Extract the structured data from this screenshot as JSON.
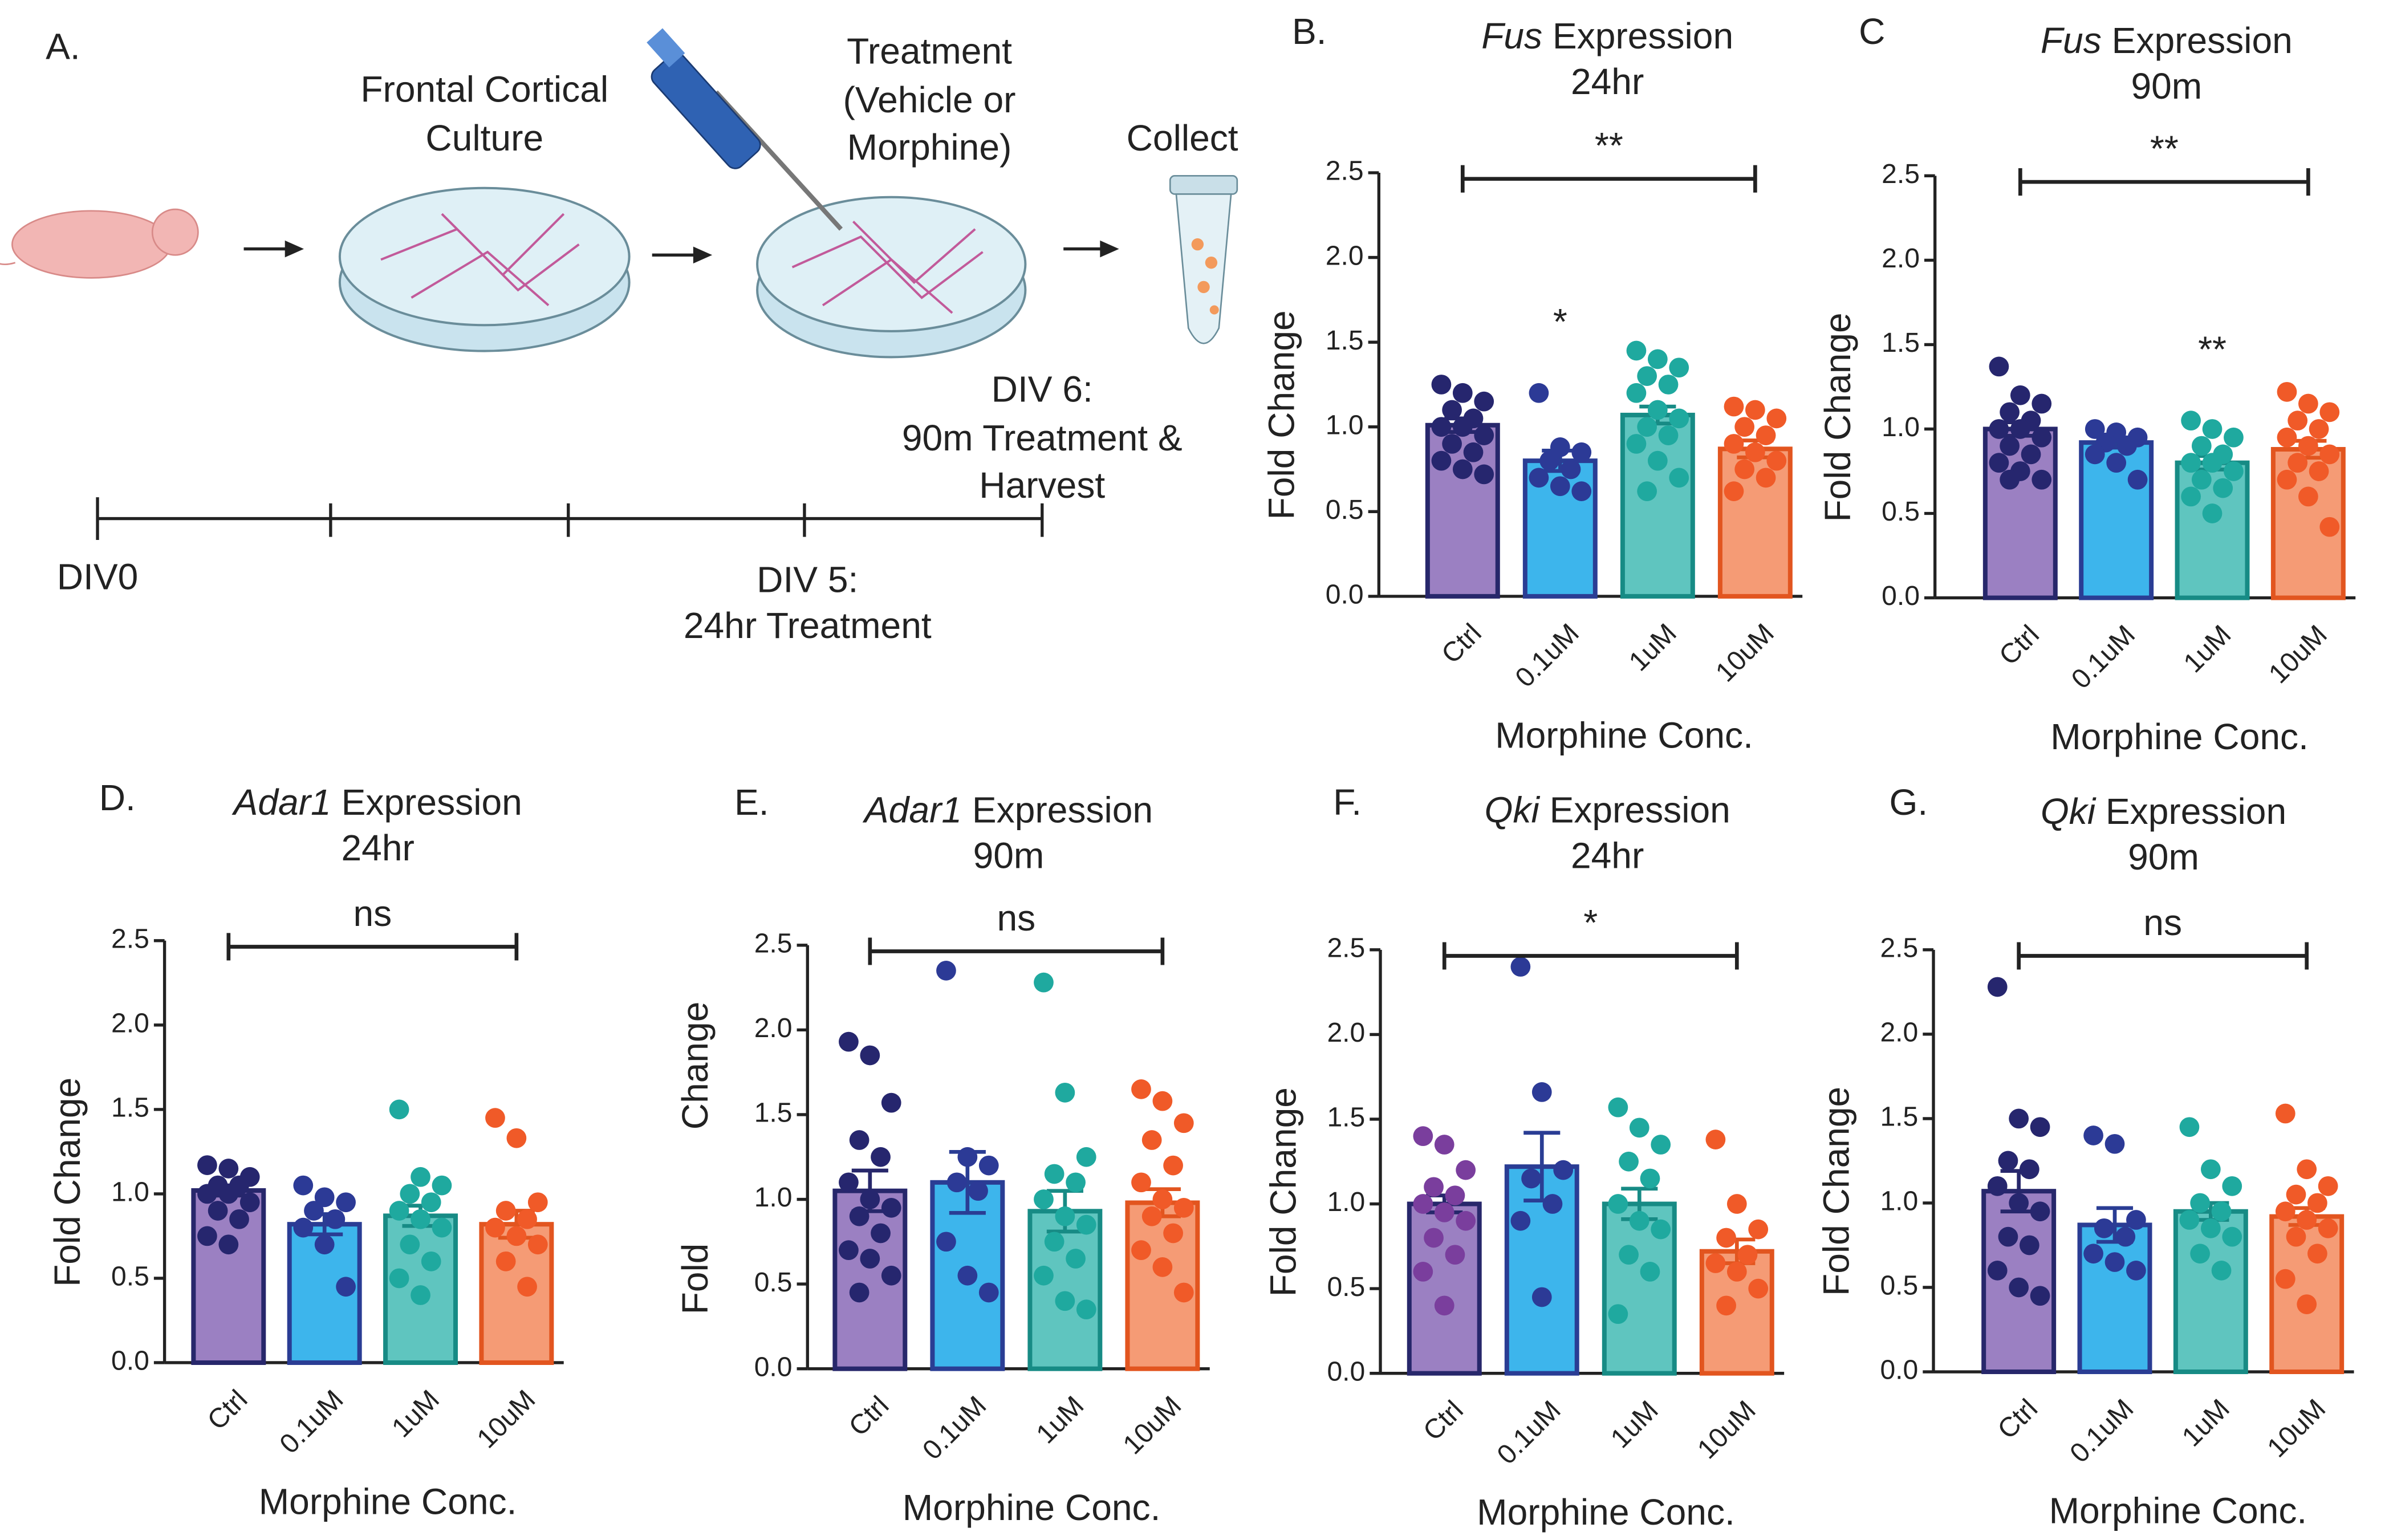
{
  "panel_a": {
    "label": "A.",
    "culture": [
      "Frontal Cortical",
      "Culture"
    ],
    "treatment": [
      "Treatment",
      "(Vehicle or",
      "Morphine)"
    ],
    "collect": "Collect",
    "div0": "DIV0",
    "div5": [
      "DIV 5:",
      "24hr Treatment"
    ],
    "div6": [
      "DIV 6:",
      "90m Treatment &",
      "Harvest"
    ]
  },
  "chart_data": [
    {
      "type": "bar",
      "panel": "B.",
      "title_gene": "Fus",
      "title": "Expression",
      "subtitle": "24hr",
      "ylabel": [
        "Fold Change"
      ],
      "xlabel": "Morphine Conc.",
      "categories": [
        "Ctrl",
        "0.1uM",
        "1uM",
        "10uM"
      ],
      "values": [
        1.01,
        0.8,
        1.07,
        0.87
      ],
      "errors": [
        0.04,
        0.06,
        0.05,
        0.05
      ],
      "points": [
        [
          1.25,
          1.2,
          1.15,
          1.1,
          1.05,
          1.0,
          1.0,
          0.95,
          0.9,
          0.85,
          0.8,
          0.75,
          0.72
        ],
        [
          1.2,
          0.88,
          0.85,
          0.8,
          0.75,
          0.7,
          0.65,
          0.62
        ],
        [
          1.45,
          1.4,
          1.35,
          1.3,
          1.25,
          1.2,
          1.1,
          1.05,
          1.0,
          0.95,
          0.9,
          0.8,
          0.7,
          0.62
        ],
        [
          1.12,
          1.1,
          1.05,
          1.0,
          0.95,
          0.9,
          0.85,
          0.8,
          0.75,
          0.7,
          0.62
        ]
      ],
      "bracket_label": "**",
      "bar_labels": [
        null,
        "*",
        null,
        null
      ],
      "colors": [
        "#9b80c2",
        "#3db5ec",
        "#5fc5bf",
        "#f59b75"
      ],
      "edge_colors": [
        "#27276b",
        "#2a3d94",
        "#178b85",
        "#e2551f"
      ],
      "point_colors": [
        "#26266e",
        "#2c3a96",
        "#1fa99f",
        "#f05a28"
      ],
      "ylim": [
        0,
        2.5
      ],
      "yticks": [
        {
          "value": 0,
          "label": "0.0"
        },
        0.5,
        {
          "value": 1,
          "label": "1.0"
        },
        1.5,
        {
          "value": 2,
          "label": "2.0"
        },
        2.5
      ]
    },
    {
      "type": "bar",
      "panel": "C",
      "title_gene": "Fus",
      "title": "Expression",
      "subtitle": "90m",
      "ylabel": [
        "Fold Change"
      ],
      "xlabel": "Morphine Conc.",
      "categories": [
        "Ctrl",
        "0.1uM",
        "1uM",
        "10uM"
      ],
      "values": [
        1.0,
        0.92,
        0.8,
        0.88
      ],
      "errors": [
        0.04,
        0.03,
        0.04,
        0.05
      ],
      "points": [
        [
          1.37,
          1.2,
          1.15,
          1.1,
          1.05,
          1.0,
          1.0,
          0.95,
          0.9,
          0.85,
          0.8,
          0.75,
          0.7,
          0.7
        ],
        [
          1.0,
          0.98,
          0.95,
          0.92,
          0.9,
          0.85,
          0.8,
          0.7
        ],
        [
          1.05,
          1.0,
          0.95,
          0.9,
          0.85,
          0.8,
          0.8,
          0.75,
          0.7,
          0.65,
          0.6,
          0.5
        ],
        [
          1.22,
          1.15,
          1.1,
          1.05,
          1.0,
          0.95,
          0.9,
          0.85,
          0.8,
          0.75,
          0.7,
          0.6,
          0.42
        ]
      ],
      "bracket_label": "**",
      "bar_labels": [
        null,
        null,
        "**",
        null
      ],
      "colors": [
        "#9b80c2",
        "#3db5ec",
        "#5fc5bf",
        "#f59b75"
      ],
      "edge_colors": [
        "#27276b",
        "#2a3d94",
        "#178b85",
        "#e2551f"
      ],
      "point_colors": [
        "#26266e",
        "#2c3a96",
        "#1fa99f",
        "#f05a28"
      ],
      "ylim": [
        0,
        2.5
      ],
      "yticks": [
        {
          "value": 0,
          "label": "0.0"
        },
        0.5,
        {
          "value": 1,
          "label": "1.0"
        },
        1.5,
        {
          "value": 2,
          "label": "2.0"
        },
        2.5
      ]
    },
    {
      "type": "bar",
      "panel": "D.",
      "title_gene": "Adar1",
      "title": "Expression",
      "subtitle": "24hr",
      "ylabel": [
        "Fold Change"
      ],
      "xlabel": "Morphine Conc.",
      "categories": [
        "Ctrl",
        "0.1uM",
        "1uM",
        "10uM"
      ],
      "values": [
        1.02,
        0.82,
        0.87,
        0.82
      ],
      "errors": [
        0.03,
        0.06,
        0.06,
        0.08
      ],
      "points": [
        [
          1.17,
          1.15,
          1.1,
          1.05,
          1.05,
          1.0,
          1.0,
          0.95,
          0.9,
          0.85,
          0.75,
          0.7
        ],
        [
          1.05,
          0.98,
          0.95,
          0.9,
          0.85,
          0.8,
          0.7,
          0.45
        ],
        [
          1.5,
          1.1,
          1.05,
          1.0,
          0.95,
          0.9,
          0.85,
          0.8,
          0.7,
          0.6,
          0.5,
          0.4
        ],
        [
          1.45,
          1.33,
          0.95,
          0.9,
          0.85,
          0.8,
          0.75,
          0.7,
          0.6,
          0.45
        ]
      ],
      "bracket_label": "ns",
      "bar_labels": [
        null,
        null,
        null,
        null
      ],
      "colors": [
        "#9b80c2",
        "#3db5ec",
        "#5fc5bf",
        "#f59b75"
      ],
      "edge_colors": [
        "#27276b",
        "#2a3d94",
        "#178b85",
        "#e2551f"
      ],
      "point_colors": [
        "#26266e",
        "#2c3a96",
        "#1fa99f",
        "#f05a28"
      ],
      "ylim": [
        0,
        2.5
      ],
      "yticks": [
        {
          "value": 0,
          "label": "0.0"
        },
        0.5,
        {
          "value": 1,
          "label": "1.0"
        },
        1.5,
        {
          "value": 2,
          "label": "2.0"
        },
        2.5
      ]
    },
    {
      "type": "bar",
      "panel": "E.",
      "title_gene": "Adar1",
      "title": "Expression",
      "subtitle": "90m",
      "ylabel": [
        "Fold",
        "Change"
      ],
      "xlabel": "Morphine Conc.",
      "categories": [
        "Ctrl",
        "0.1uM",
        "1uM",
        "10uM"
      ],
      "values": [
        1.05,
        1.1,
        0.93,
        0.98
      ],
      "errors": [
        0.12,
        0.18,
        0.12,
        0.08
      ],
      "points": [
        [
          1.93,
          1.85,
          1.57,
          1.35,
          1.25,
          1.1,
          1.0,
          0.95,
          0.9,
          0.8,
          0.7,
          0.65,
          0.55,
          0.45
        ],
        [
          2.35,
          1.25,
          1.2,
          1.1,
          1.05,
          0.75,
          0.55,
          0.45
        ],
        [
          2.28,
          1.63,
          1.25,
          1.15,
          1.1,
          1.0,
          0.9,
          0.85,
          0.75,
          0.65,
          0.55,
          0.4,
          0.35
        ],
        [
          1.65,
          1.58,
          1.45,
          1.35,
          1.2,
          1.1,
          1.0,
          0.95,
          0.9,
          0.8,
          0.7,
          0.6,
          0.45
        ]
      ],
      "bracket_label": "ns",
      "bar_labels": [
        null,
        null,
        null,
        null
      ],
      "colors": [
        "#9b80c2",
        "#3db5ec",
        "#5fc5bf",
        "#f59b75"
      ],
      "edge_colors": [
        "#27276b",
        "#2a3d94",
        "#178b85",
        "#e2551f"
      ],
      "point_colors": [
        "#26266e",
        "#2c3a96",
        "#1fa99f",
        "#f05a28"
      ],
      "ylim": [
        0,
        2.5
      ],
      "yticks": [
        {
          "value": 0,
          "label": "0.0"
        },
        0.5,
        {
          "value": 1,
          "label": "1.0"
        },
        1.5,
        {
          "value": 2,
          "label": "2.0"
        },
        2.5
      ]
    },
    {
      "type": "bar",
      "panel": "F.",
      "title_gene": "Qki",
      "title": "Expression",
      "subtitle": "24hr",
      "ylabel": [
        "Fold Change"
      ],
      "xlabel": "Morphine Conc.",
      "categories": [
        "Ctrl",
        "0.1uM",
        "1uM",
        "10uM"
      ],
      "values": [
        1.0,
        1.22,
        1.0,
        0.72
      ],
      "errors": [
        0.05,
        0.2,
        0.09,
        0.07
      ],
      "points": [
        [
          1.4,
          1.35,
          1.2,
          1.1,
          1.05,
          1.0,
          0.95,
          0.9,
          0.8,
          0.7,
          0.6,
          0.4
        ],
        [
          2.4,
          1.66,
          1.2,
          1.15,
          1.0,
          0.9,
          0.45
        ],
        [
          1.57,
          1.45,
          1.35,
          1.25,
          1.15,
          1.0,
          0.9,
          0.85,
          0.7,
          0.6,
          0.35
        ],
        [
          1.38,
          1.0,
          0.85,
          0.8,
          0.7,
          0.65,
          0.6,
          0.5,
          0.4
        ]
      ],
      "bracket_label": "*",
      "bar_labels": [
        null,
        null,
        null,
        null
      ],
      "colors": [
        "#9b80c2",
        "#3db5ec",
        "#5fc5bf",
        "#f59b75"
      ],
      "edge_colors": [
        "#27276b",
        "#2a3d94",
        "#178b85",
        "#e2551f"
      ],
      "point_colors": [
        "#7a3e9d",
        "#2c3a96",
        "#1fa99f",
        "#f05a28"
      ],
      "ylim": [
        0,
        2.5
      ],
      "yticks": [
        {
          "value": 0,
          "label": "0.0"
        },
        0.5,
        {
          "value": 1,
          "label": "1.0"
        },
        1.5,
        {
          "value": 2,
          "label": "2.0"
        },
        2.5
      ]
    },
    {
      "type": "bar",
      "panel": "G.",
      "title_gene": "Qki",
      "title": "Expression",
      "subtitle": "90m",
      "ylabel": [
        "Fold Change"
      ],
      "xlabel": "Morphine Conc.",
      "categories": [
        "Ctrl",
        "0.1uM",
        "1uM",
        "10uM"
      ],
      "values": [
        1.07,
        0.87,
        0.95,
        0.92
      ],
      "errors": [
        0.12,
        0.1,
        0.05,
        0.05
      ],
      "points": [
        [
          2.28,
          1.5,
          1.45,
          1.25,
          1.2,
          1.1,
          1.0,
          0.95,
          0.8,
          0.75,
          0.6,
          0.5,
          0.45
        ],
        [
          1.4,
          1.35,
          0.9,
          0.85,
          0.8,
          0.7,
          0.65,
          0.6
        ],
        [
          1.45,
          1.2,
          1.1,
          1.0,
          0.95,
          0.9,
          0.85,
          0.8,
          0.7,
          0.6
        ],
        [
          1.53,
          1.2,
          1.1,
          1.05,
          1.0,
          0.95,
          0.9,
          0.85,
          0.8,
          0.7,
          0.55,
          0.4
        ]
      ],
      "bracket_label": "ns",
      "bar_labels": [
        null,
        null,
        null,
        null
      ],
      "colors": [
        "#9b80c2",
        "#3db5ec",
        "#5fc5bf",
        "#f59b75"
      ],
      "edge_colors": [
        "#27276b",
        "#2a3d94",
        "#178b85",
        "#e2551f"
      ],
      "point_colors": [
        "#26266e",
        "#2c3a96",
        "#1fa99f",
        "#f05a28"
      ],
      "ylim": [
        0,
        2.5
      ],
      "yticks": [
        {
          "value": 0,
          "label": "0.0"
        },
        0.5,
        {
          "value": 1,
          "label": "1.0"
        },
        1.5,
        {
          "value": 2,
          "label": "2.0"
        },
        2.5
      ]
    }
  ]
}
